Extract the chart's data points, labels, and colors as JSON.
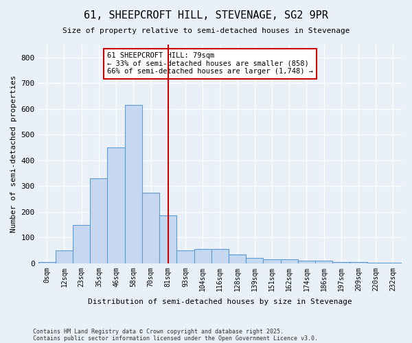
{
  "title": "61, SHEEPCROFT HILL, STEVENAGE, SG2 9PR",
  "subtitle": "Size of property relative to semi-detached houses in Stevenage",
  "xlabel": "Distribution of semi-detached houses by size in Stevenage",
  "ylabel": "Number of semi-detached properties",
  "bar_color": "#c5d8f0",
  "bar_edge_color": "#5b9bd5",
  "background_color": "#eaf0f8",
  "grid_color": "#ffffff",
  "categories": [
    "0sqm",
    "12sqm",
    "23sqm",
    "35sqm",
    "46sqm",
    "58sqm",
    "70sqm",
    "81sqm",
    "93sqm",
    "104sqm",
    "116sqm",
    "128sqm",
    "139sqm",
    "151sqm",
    "162sqm",
    "174sqm",
    "186sqm",
    "197sqm",
    "209sqm",
    "220sqm",
    "232sqm"
  ],
  "values": [
    5,
    50,
    150,
    330,
    450,
    615,
    275,
    185,
    50,
    55,
    55,
    35,
    20,
    15,
    15,
    10,
    10,
    5,
    5,
    2,
    1
  ],
  "vline_index": 7,
  "vline_color": "#cc0000",
  "annotation_title": "61 SHEEPCROFT HILL: 79sqm",
  "annotation_line1": "← 33% of semi-detached houses are smaller (858)",
  "annotation_line2": "66% of semi-detached houses are larger (1,748) →",
  "annotation_box_color": "#ffffff",
  "annotation_box_edge": "#cc0000",
  "ylim": [
    0,
    850
  ],
  "yticks": [
    0,
    100,
    200,
    300,
    400,
    500,
    600,
    700,
    800
  ],
  "footnote1": "Contains HM Land Registry data © Crown copyright and database right 2025.",
  "footnote2": "Contains public sector information licensed under the Open Government Licence v3.0."
}
